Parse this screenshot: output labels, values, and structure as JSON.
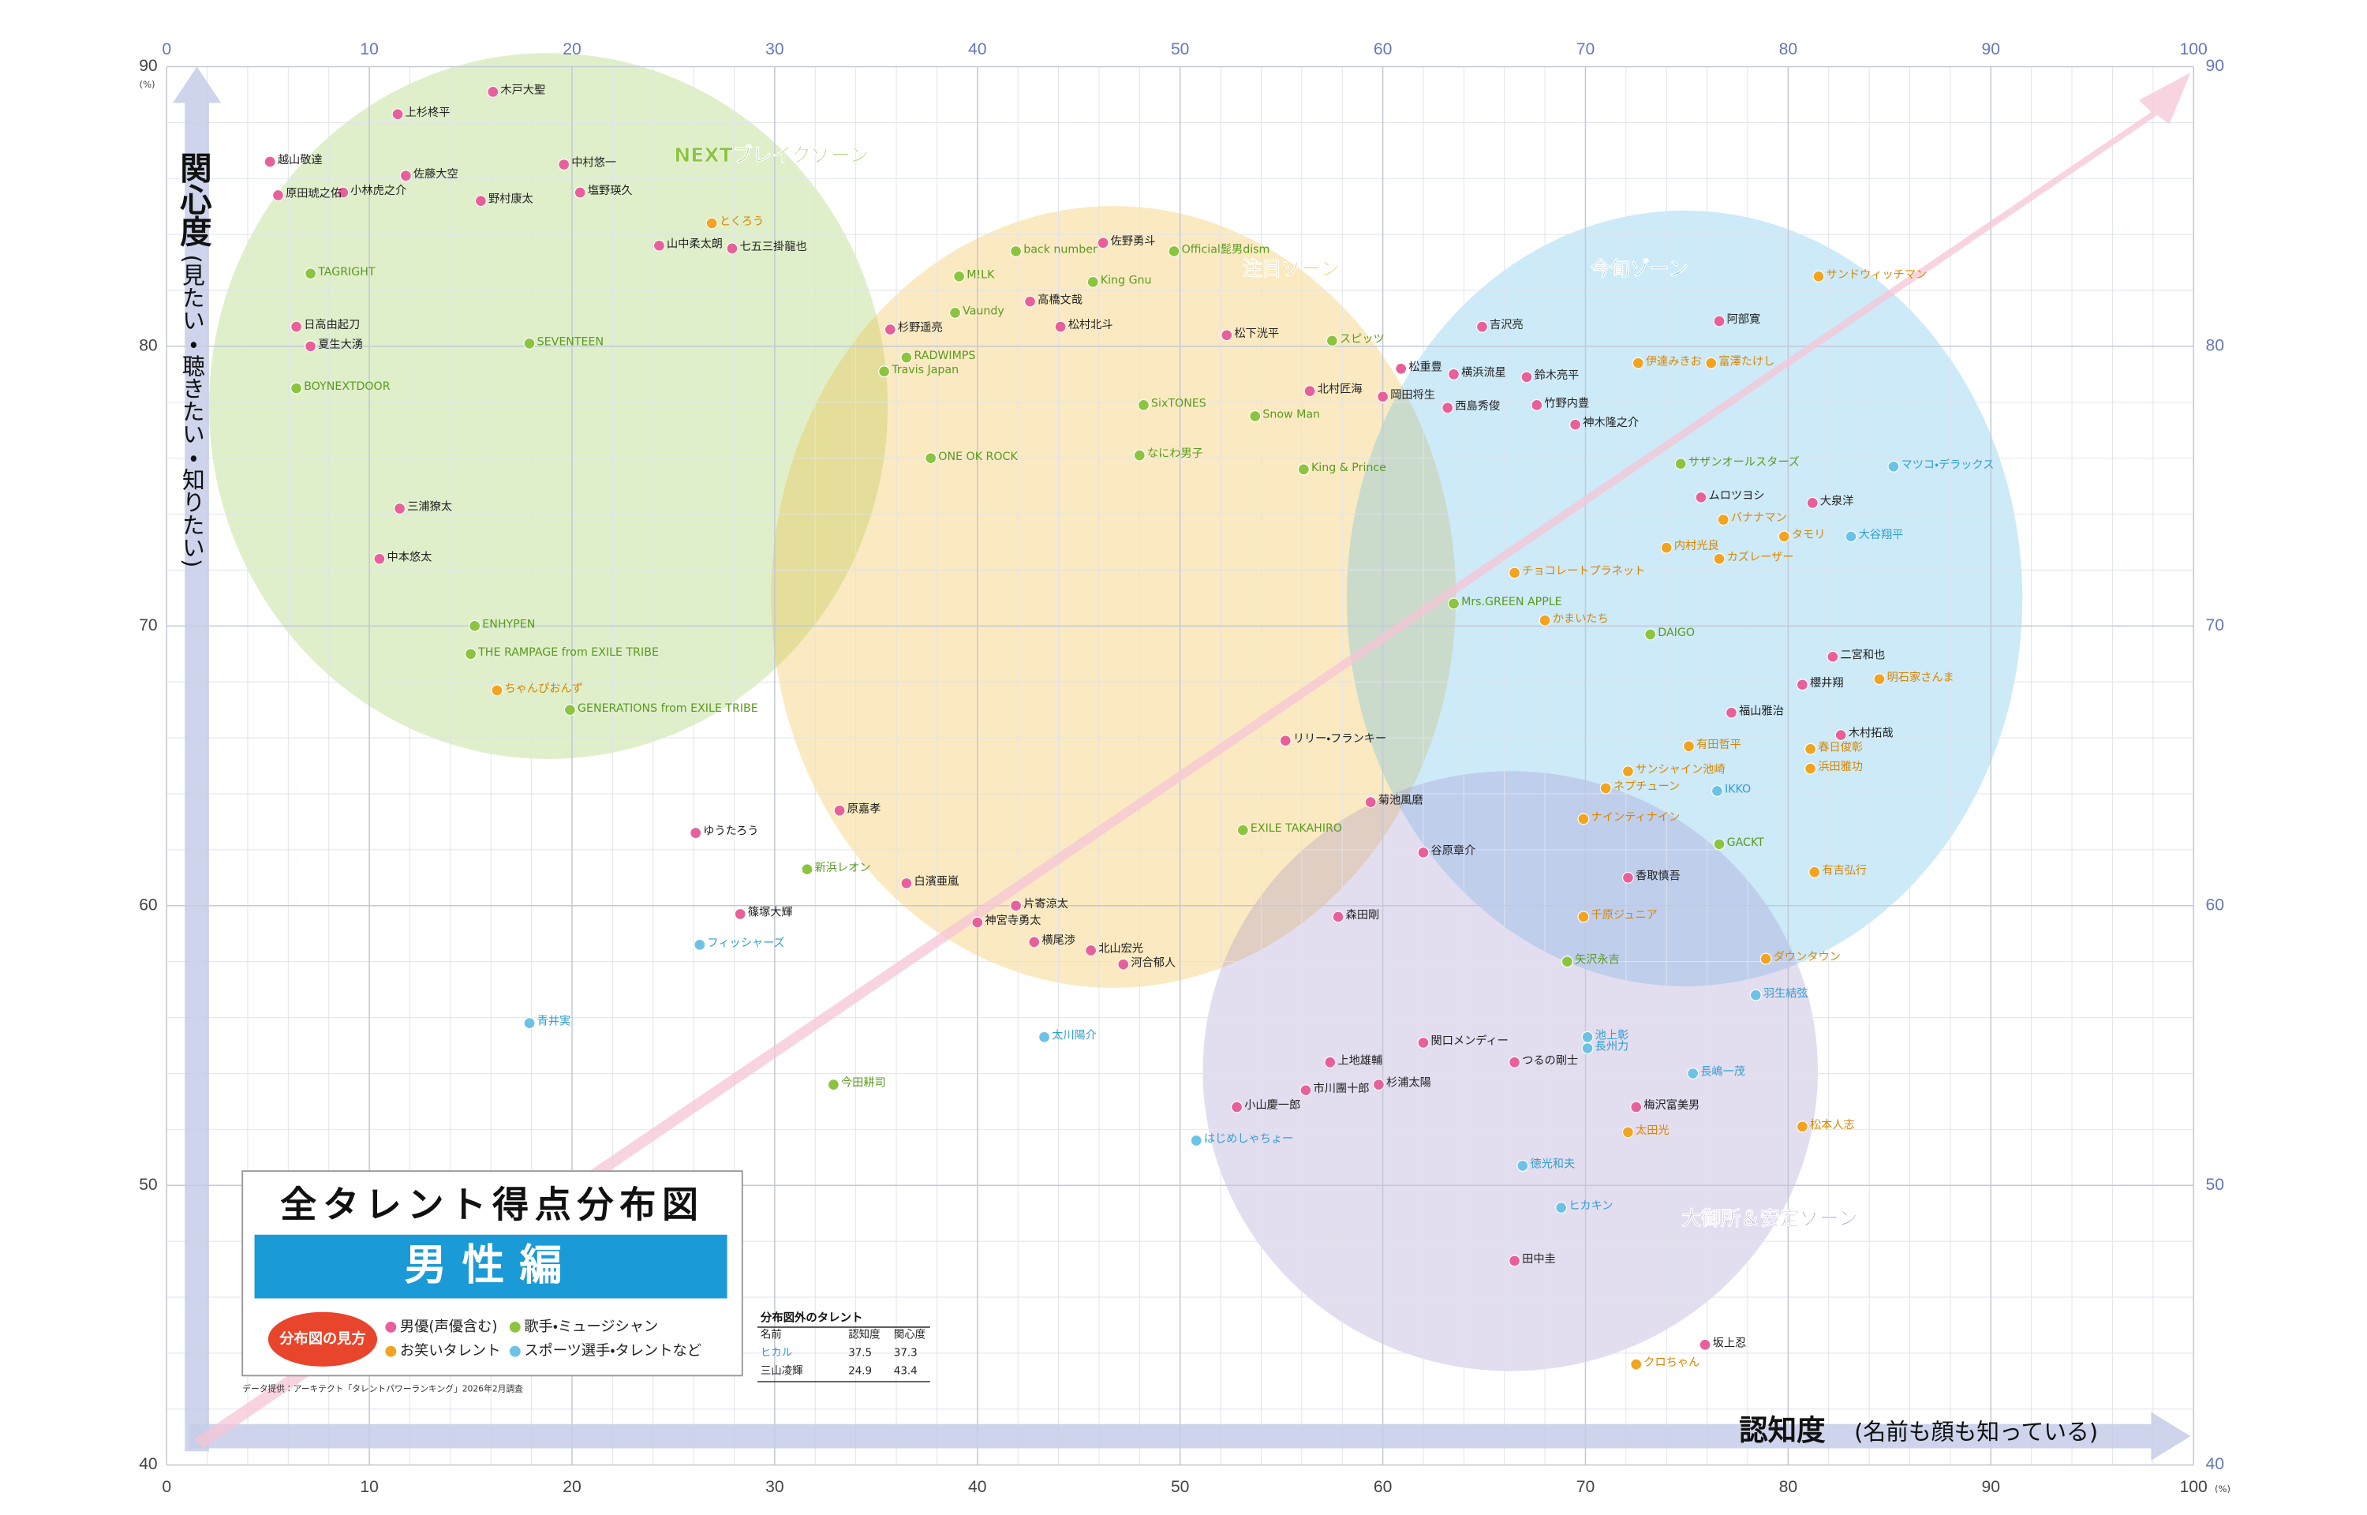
{
  "chart_data": {
    "type": "scatter",
    "y_label": "関心度",
    "y_label_sub": "(見たい・聴きたい・知りたい)",
    "x_label": "認知度",
    "x_label_sub": "(名前も顔も知っている)",
    "xunit": "(%)",
    "yunit": "(%)",
    "xlim": [
      0,
      100
    ],
    "ylim": [
      40,
      90
    ],
    "xticks": [
      0,
      10,
      20,
      30,
      40,
      50,
      60,
      70,
      80,
      90,
      100
    ],
    "yticks": [
      40,
      50,
      60,
      70,
      80,
      90
    ],
    "grid": true,
    "legend_title": "全タレント得点分布図",
    "legend_subtitle": "男性編",
    "legend_heading": "分布図の見方",
    "source": "データ提供：アーキテクト「タレントパワーランキング」2026年2月調査",
    "zones": [
      {
        "name": "NEXTブレイクゾーン",
        "color": "#8cc43f"
      },
      {
        "name": "注目ゾーン",
        "color": "#f2b31f"
      },
      {
        "name": "今旬ゾーン",
        "color": "#4bb3e6"
      },
      {
        "name": "大御所＆安定ゾーン",
        "color": "#9b86c8"
      }
    ],
    "outside_table": {
      "title": "分布図外のタレント",
      "columns": [
        "名前",
        "認知度",
        "関心度"
      ],
      "rows": [
        [
          "ヒカル",
          "37.5",
          "37.3"
        ],
        [
          "三山凌輝",
          "24.9",
          "43.4"
        ]
      ]
    },
    "series": [
      {
        "name": "男優(声優含む)",
        "color": "#e8609a",
        "labels": [
          "木戸大聖",
          "上杉柊平",
          "越山敬達",
          "佐藤大空",
          "中村悠一",
          "塩野瑛久",
          "野村康太",
          "小林虎之介",
          "原田琥之佑",
          "七五三掛龍也",
          "山中柔太朗",
          "佐野勇斗",
          "阿部寛",
          "吉沢亮",
          "高橋文哉",
          "松村北斗",
          "松下洸平",
          "杉野遥亮",
          "松重豊",
          "横浜流星",
          "鈴木亮平",
          "竹野内豊",
          "西島秀俊",
          "岡田将生",
          "北村匠海",
          "神木隆之介",
          "ムロツヨシ",
          "大泉洋",
          "二宮和也",
          "櫻井翔",
          "木村拓哉",
          "坂上忍",
          "田中圭",
          "上地雄輔",
          "市川團十郎",
          "杉浦太陽",
          "小山慶一郎",
          "関口メンディー",
          "河合郁人",
          "北山宏光",
          "横尾渉",
          "神宮寺勇太",
          "片寄涼太",
          "森田剛",
          "谷原章介",
          "菊池風磨",
          "リリー・フランキー",
          "香取慎吾",
          "篠塚大輝",
          "ゆうたろう",
          "白濱亜嵐",
          "原嘉孝",
          "中本悠太",
          "日高由起刀",
          "夏生大湧",
          "三浦獠太",
          "福山雅治",
          "つるの剛士",
          "梅沢富美男"
        ],
        "x": [
          16.1,
          11.4,
          5.1,
          11.8,
          19.6,
          20.4,
          15.5,
          8.7,
          5.5,
          27.9,
          24.3,
          46.2,
          76.6,
          64.9,
          42.6,
          44.1,
          52.3,
          35.7,
          60.9,
          63.5,
          67.1,
          67.6,
          63.2,
          60.0,
          56.4,
          69.5,
          75.7,
          81.2,
          82.2,
          80.7,
          82.6,
          75.9,
          66.5,
          57.4,
          56.2,
          59.8,
          52.8,
          62.0,
          47.2,
          45.6,
          42.8,
          40.0,
          41.9,
          57.8,
          62.0,
          59.4,
          55.2,
          72.1,
          28.3,
          26.1,
          36.5,
          33.2,
          10.5,
          6.4,
          7.1,
          11.5,
          77.2,
          66.5,
          72.5
        ],
        "values": [
          89.1,
          88.3,
          86.6,
          86.1,
          86.5,
          85.5,
          85.2,
          85.5,
          85.4,
          83.5,
          83.6,
          83.7,
          80.9,
          80.7,
          81.6,
          80.7,
          80.4,
          80.6,
          79.2,
          79.0,
          78.9,
          77.9,
          77.8,
          78.2,
          78.4,
          77.2,
          74.6,
          74.4,
          68.9,
          67.9,
          66.1,
          44.3,
          47.3,
          54.4,
          53.4,
          53.6,
          52.8,
          55.1,
          57.9,
          58.4,
          58.7,
          59.4,
          60.0,
          59.6,
          61.9,
          63.7,
          65.9,
          61.0,
          59.7,
          62.6,
          60.8,
          63.4,
          72.4,
          80.7,
          80.0,
          74.2,
          66.9,
          54.4,
          52.8
        ]
      },
      {
        "name": "歌手・ミュージシャン",
        "color": "#8cc43f",
        "labels": [
          "back number",
          "Official髭男dism",
          "スピッツ",
          "M!LK",
          "King Gnu",
          "Vaundy",
          "サザンオールスターズ",
          "EXILE TAKAHIRO",
          "新浜レオン",
          "ENHYPEN",
          "THE RAMPAGE from EXILE TRIBE",
          "GENERATIONS from EXILE TRIBE",
          "SEVENTEEN",
          "BOYNEXTDOOR",
          "TAGRIGHT",
          "Snow Man",
          "King & Prince",
          "なにわ男子",
          "Mrs.GREEN APPLE",
          "ONE OK ROCK",
          "RADWIMPS",
          "Travis Japan",
          "SixTONES",
          "GACKT",
          "矢沢永吉",
          "DAIGO",
          "今田耕司"
        ],
        "x": [
          41.9,
          49.7,
          57.5,
          39.1,
          45.7,
          38.9,
          74.7,
          53.1,
          31.6,
          15.2,
          15.0,
          19.9,
          17.9,
          6.4,
          7.1,
          53.7,
          56.1,
          48.0,
          63.5,
          37.7,
          36.5,
          35.4,
          48.2,
          76.6,
          69.1,
          73.2,
          32.9
        ],
        "values": [
          83.4,
          83.4,
          80.2,
          82.5,
          82.3,
          81.2,
          75.8,
          62.7,
          61.3,
          70.0,
          69.0,
          67.0,
          80.1,
          78.5,
          82.6,
          77.5,
          75.6,
          76.1,
          70.8,
          76.0,
          79.6,
          79.1,
          77.9,
          62.2,
          58.0,
          69.7,
          53.6
        ]
      },
      {
        "name": "お笑いタレント",
        "color": "#f2a31f",
        "labels": [
          "とくろう",
          "サンドウィッチマン",
          "伊達みきお",
          "富澤たけし",
          "バナナマン",
          "タモリ",
          "内村光良",
          "カズレーザー",
          "明石家さんま",
          "浜田雅功",
          "有吉弘行",
          "ダウンタウン",
          "松本人志",
          "クロちゃん",
          "ちゃんぴおんず",
          "チョコレートプラネット",
          "かまいたち",
          "ナインティナイン",
          "ネプチューン",
          "サンシャイン池崎",
          "千原ジュニア",
          "有田哲平",
          "春日俊彰",
          "太田光"
        ],
        "x": [
          26.9,
          81.5,
          72.6,
          76.2,
          76.8,
          79.8,
          74.0,
          76.6,
          84.5,
          81.1,
          81.3,
          78.9,
          80.7,
          72.5,
          16.3,
          66.5,
          68.0,
          69.9,
          71.0,
          72.1,
          69.9,
          75.1,
          81.1,
          72.1
        ],
        "values": [
          84.4,
          82.5,
          79.4,
          79.4,
          73.8,
          73.2,
          72.8,
          72.4,
          68.1,
          64.9,
          61.2,
          58.1,
          52.1,
          43.6,
          67.7,
          71.9,
          70.2,
          63.1,
          64.2,
          64.8,
          59.6,
          65.7,
          65.6,
          51.9
        ]
      },
      {
        "name": "スポーツ選手・タレントなど",
        "color": "#6cc2e6",
        "labels": [
          "マツコ・デラックス",
          "大谷翔平",
          "羽生結弦",
          "ヒカキン",
          "はじめしゃちょー",
          "太川陽介",
          "フィッシャーズ",
          "青井実",
          "IKKO",
          "池上彰",
          "長州力",
          "長嶋一茂",
          "徳光和夫"
        ],
        "x": [
          85.2,
          83.1,
          78.4,
          68.8,
          50.8,
          43.3,
          26.3,
          17.9,
          76.5,
          70.1,
          70.1,
          75.3,
          66.9
        ],
        "values": [
          75.7,
          73.2,
          56.8,
          49.2,
          51.6,
          55.3,
          58.6,
          55.8,
          64.1,
          55.3,
          54.9,
          54.0,
          50.7
        ]
      }
    ]
  }
}
